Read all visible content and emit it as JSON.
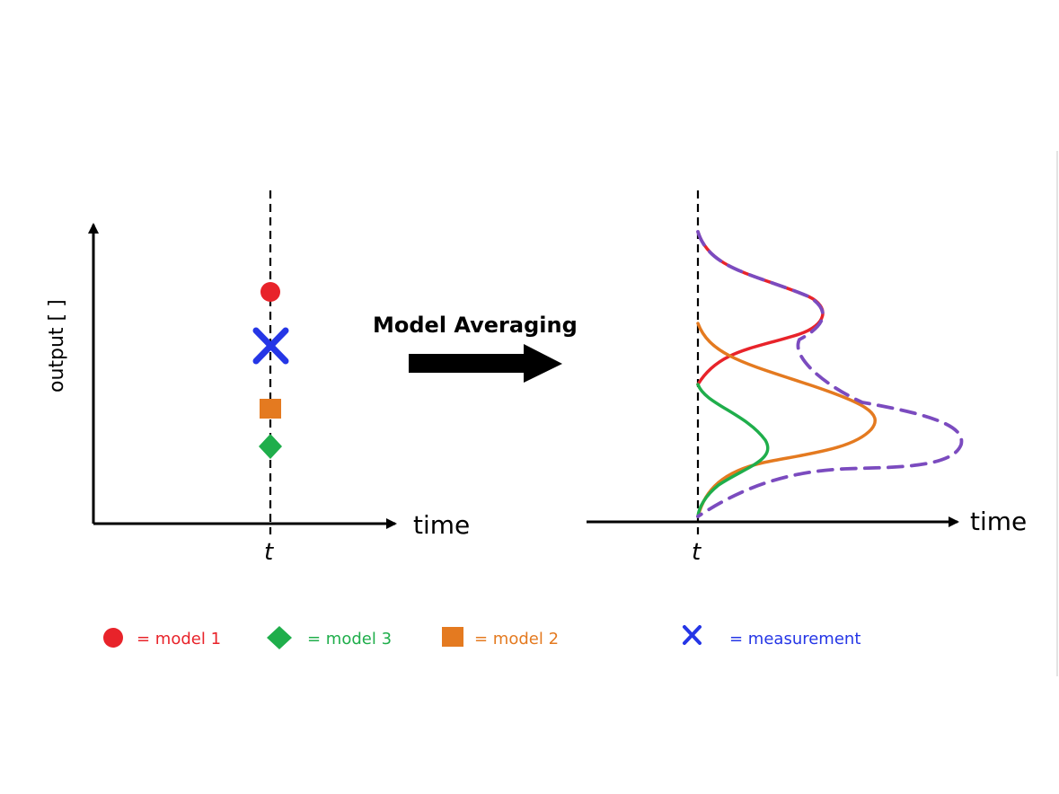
{
  "left_panel": {
    "y_axis_label": "output [ ]",
    "x_axis_label": "time",
    "time_marker": "t"
  },
  "arrow_label": "Model Averaging",
  "right_panel": {
    "x_axis_label": "time",
    "time_marker": "t"
  },
  "legend": [
    {
      "label": "= model 1",
      "symbol": "circle",
      "color": "#e8232a"
    },
    {
      "label": "= model 3",
      "symbol": "diamond",
      "color": "#1fae4b"
    },
    {
      "label": "= model 2",
      "symbol": "square",
      "color": "#e47a20"
    },
    {
      "label": "= measurement",
      "symbol": "cross",
      "color": "#2536e6"
    }
  ],
  "colors": {
    "model_1": "#e8232a",
    "model_2": "#e47a20",
    "model_3": "#1fae4b",
    "measurement": "#2536e6",
    "average": "#7b4bbf",
    "axis": "#000000"
  }
}
